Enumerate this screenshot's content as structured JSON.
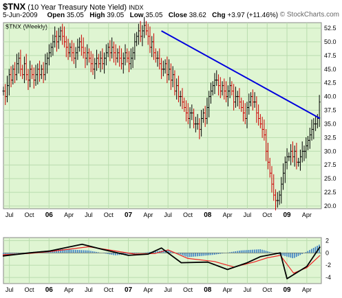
{
  "header": {
    "symbol": "$TNX",
    "name": "(10 Year Treasury Note Yield)",
    "exchange": "INDX",
    "date": "5-Jun-2009",
    "open_label": "Open",
    "open": "35.05",
    "high_label": "High",
    "high": "39.05",
    "low_label": "Low",
    "low": "35.05",
    "close_label": "Close",
    "close": "38.62",
    "chg_label": "Chg",
    "chg": "+3.97 (+11.46%)",
    "credit": "© StockCharts.com",
    "panel_label": "$TNX (Weekly)"
  },
  "colors": {
    "panel_bg": "#dff5d2",
    "grid": "#b9dcae",
    "up_bar": "#000000",
    "down_bar": "#cc0000",
    "trendline": "#0000dd",
    "macd_line": "#000000",
    "signal_line": "#ee2222",
    "histogram": "#3a7ec4"
  },
  "chart_data": [
    {
      "type": "ohlc",
      "title": "$TNX (Weekly)",
      "x_tick_labels": [
        "Jul",
        "Oct",
        "06",
        "Apr",
        "Jul",
        "Oct",
        "07",
        "Apr",
        "Jul",
        "Oct",
        "08",
        "Apr",
        "Jul",
        "Oct",
        "09",
        "Apr"
      ],
      "x_tick_dates": [
        "2005-07",
        "2005-10",
        "2006-01",
        "2006-04",
        "2006-07",
        "2006-10",
        "2007-01",
        "2007-04",
        "2007-07",
        "2007-10",
        "2008-01",
        "2008-04",
        "2008-07",
        "2008-10",
        "2009-01",
        "2009-04"
      ],
      "bold_ticks": [
        "06",
        "07",
        "08",
        "09"
      ],
      "y_range": [
        19.5,
        53.5
      ],
      "y_ticks": [
        20.0,
        22.5,
        25.0,
        27.5,
        30.0,
        32.5,
        35.0,
        37.5,
        40.0,
        42.5,
        45.0,
        47.5,
        50.0,
        52.5
      ],
      "y_axis_position": "right",
      "grid": true,
      "close_series_start_week": "2005-06",
      "weekly_close": [
        41,
        40,
        42,
        44,
        43,
        45,
        44,
        46,
        47,
        45,
        44,
        46,
        44,
        43,
        45,
        44,
        43,
        44,
        45,
        44,
        45,
        44,
        46,
        47,
        48,
        49,
        50,
        51,
        50,
        51,
        52,
        51,
        50,
        49,
        48,
        49,
        48,
        47,
        48,
        49,
        50,
        49,
        48,
        47,
        48,
        47,
        46,
        45,
        46,
        47,
        46,
        47,
        46,
        47,
        48,
        49,
        48,
        49,
        48,
        47,
        48,
        47,
        46,
        47,
        48,
        47,
        46,
        47,
        48,
        50,
        51,
        52,
        51,
        52,
        53,
        52,
        51,
        49,
        50,
        48,
        47,
        47,
        46,
        45,
        45,
        46,
        44,
        45,
        43,
        44,
        41,
        42,
        40,
        40,
        39,
        38,
        37,
        36,
        37,
        37,
        35,
        35,
        35,
        34,
        36,
        37,
        36,
        38,
        40,
        41,
        42,
        43,
        43,
        42,
        41,
        42,
        41,
        40,
        41,
        42,
        41,
        39,
        40,
        40,
        39,
        38,
        37,
        36,
        38,
        39,
        40,
        39,
        39,
        37,
        36,
        35,
        34,
        33,
        30,
        28,
        26,
        24,
        22,
        21,
        21,
        22,
        24,
        26,
        28,
        29,
        29,
        30,
        29,
        30,
        28,
        28,
        29,
        30,
        30,
        31,
        32,
        33,
        34,
        35,
        35,
        36,
        39
      ]
    },
    {
      "type": "line",
      "series": [
        {
          "name": "",
          "role": "trendline",
          "x": [
            "2007-06",
            "2009-06"
          ],
          "y": [
            52.0,
            36.0
          ]
        }
      ]
    },
    {
      "type": "line",
      "y_range": [
        -5,
        2.5
      ],
      "y_ticks": [
        -4,
        -2,
        0,
        2
      ],
      "y_axis_position": "right",
      "grid": true,
      "x_tick_labels": [
        "Jul",
        "Oct",
        "06",
        "Apr",
        "Jul",
        "Oct",
        "07",
        "Apr",
        "Jul",
        "Oct",
        "08",
        "Apr",
        "Jul",
        "Oct",
        "09",
        "Apr"
      ],
      "x_tick_dates": [
        "2005-07",
        "2005-10",
        "2006-01",
        "2006-04",
        "2006-07",
        "2006-10",
        "2007-01",
        "2007-04",
        "2007-07",
        "2007-10",
        "2008-01",
        "2008-04",
        "2008-07",
        "2008-10",
        "2009-01",
        "2009-04"
      ],
      "series": [
        {
          "name": "",
          "role": "macd",
          "x": [
            "2005-06",
            "2005-10",
            "2006-01",
            "2006-06",
            "2006-09",
            "2007-01",
            "2007-04",
            "2007-06",
            "2007-09",
            "2008-01",
            "2008-04",
            "2008-07",
            "2008-09",
            "2008-12",
            "2009-01",
            "2009-04",
            "2009-06"
          ],
          "y": [
            -0.5,
            0.0,
            0.3,
            1.4,
            0.6,
            -0.4,
            -0.2,
            0.8,
            -1.6,
            -1.5,
            -2.7,
            -1.6,
            -0.6,
            0.0,
            -4.2,
            -2.2,
            1.0
          ]
        },
        {
          "name": "",
          "role": "signal",
          "x": [
            "2005-06",
            "2005-10",
            "2006-01",
            "2006-07",
            "2006-10",
            "2007-02",
            "2007-05",
            "2007-07",
            "2007-10",
            "2008-02",
            "2008-05",
            "2008-08",
            "2008-10",
            "2008-12",
            "2009-02",
            "2009-04",
            "2009-06"
          ],
          "y": [
            -0.3,
            -0.1,
            0.2,
            1.0,
            0.5,
            -0.2,
            -0.1,
            0.5,
            -0.9,
            -1.4,
            -2.3,
            -1.5,
            -0.8,
            -0.4,
            -3.3,
            -2.4,
            -0.4
          ]
        },
        {
          "name": "",
          "role": "histogram",
          "x": [
            "2005-07",
            "2005-11",
            "2006-03",
            "2006-07",
            "2006-11",
            "2007-03",
            "2007-07",
            "2007-10",
            "2008-02",
            "2008-06",
            "2008-09",
            "2008-12",
            "2009-02",
            "2009-04",
            "2009-06"
          ],
          "y": [
            -0.2,
            0.2,
            0.6,
            0.4,
            -0.4,
            0.0,
            0.5,
            -0.7,
            -0.3,
            0.4,
            0.6,
            -0.3,
            -0.9,
            0.2,
            1.4
          ]
        }
      ]
    }
  ]
}
